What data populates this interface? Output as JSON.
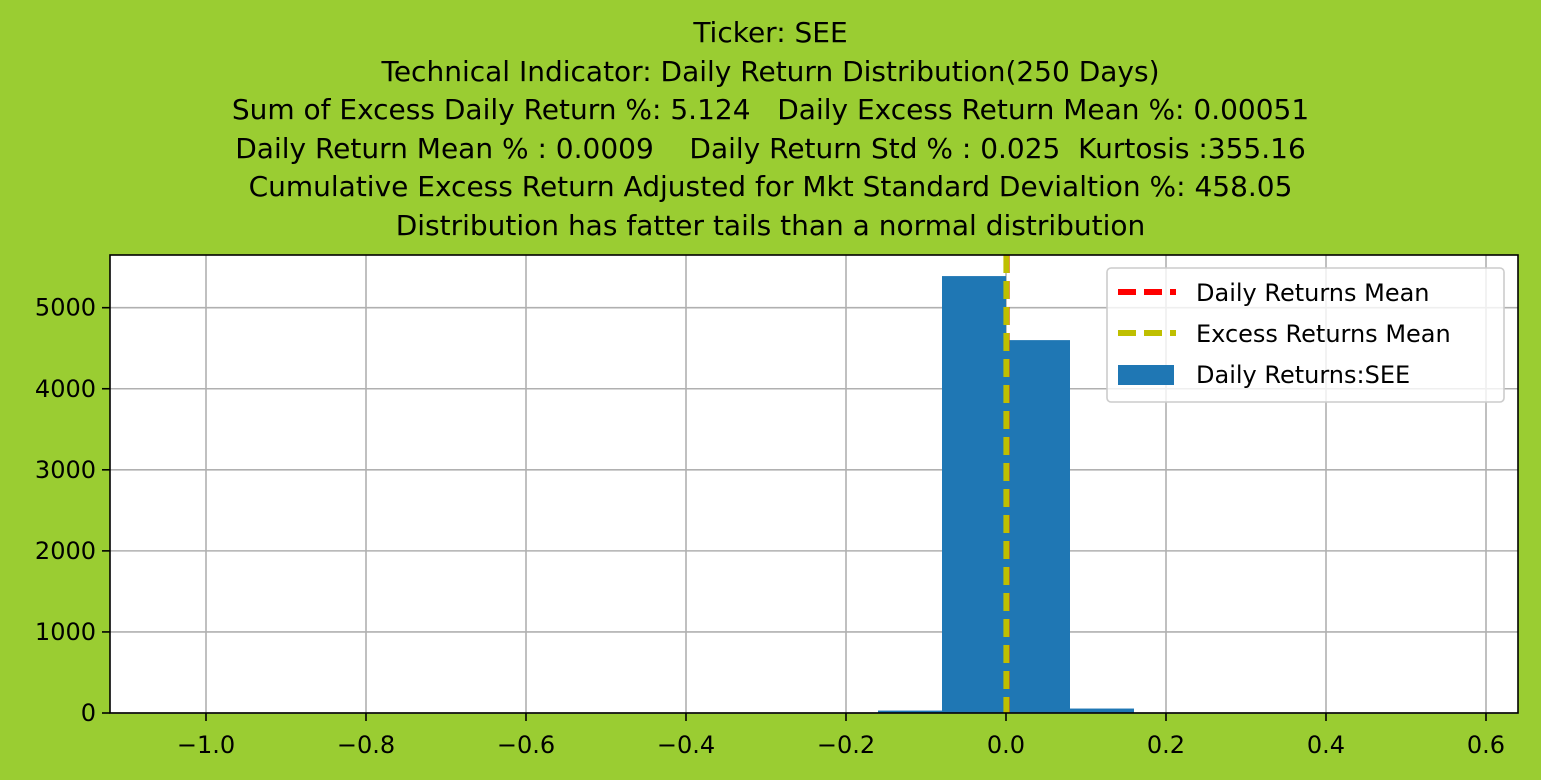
{
  "chart_data": {
    "type": "histogram",
    "title_lines": [
      "Ticker: SEE",
      "Technical Indicator: Daily Return Distribution(250 Days)",
      "Sum of Excess Daily Return %: 5.124   Daily Excess Return Mean %: 0.00051",
      "Daily Return Mean % : 0.0009    Daily Return Std % : 0.025  Kurtosis :355.16",
      "Cumulative Excess Return Adjusted for Mkt Standard Devialtion %: 458.05",
      "Distribution has fatter tails than a normal distribution"
    ],
    "xlabel": "",
    "ylabel": "",
    "xlim": [
      -1.12,
      0.64
    ],
    "ylim": [
      0,
      5650
    ],
    "xticks": [
      -1.0,
      -0.8,
      -0.6,
      -0.4,
      -0.2,
      0.0,
      0.2,
      0.4,
      0.6
    ],
    "xtick_labels": [
      "−1.0",
      "−0.8",
      "−0.6",
      "−0.4",
      "−0.2",
      "0.0",
      "0.2",
      "0.4",
      "0.6"
    ],
    "yticks": [
      0,
      1000,
      2000,
      3000,
      4000,
      5000
    ],
    "ytick_labels": [
      "0",
      "1000",
      "2000",
      "3000",
      "4000",
      "5000"
    ],
    "grid": true,
    "bins": [
      {
        "x0": -1.04,
        "x1": -0.96,
        "count": 1
      },
      {
        "x0": -0.96,
        "x1": -0.88,
        "count": 0
      },
      {
        "x0": -0.88,
        "x1": -0.8,
        "count": 0
      },
      {
        "x0": -0.8,
        "x1": -0.72,
        "count": 0
      },
      {
        "x0": -0.72,
        "x1": -0.64,
        "count": 0
      },
      {
        "x0": -0.64,
        "x1": -0.56,
        "count": 0
      },
      {
        "x0": -0.56,
        "x1": -0.48,
        "count": 0
      },
      {
        "x0": -0.48,
        "x1": -0.4,
        "count": 0
      },
      {
        "x0": -0.4,
        "x1": -0.32,
        "count": 0
      },
      {
        "x0": -0.32,
        "x1": -0.24,
        "count": 0
      },
      {
        "x0": -0.24,
        "x1": -0.16,
        "count": 0
      },
      {
        "x0": -0.16,
        "x1": -0.08,
        "count": 30
      },
      {
        "x0": -0.08,
        "x1": 0.0,
        "count": 5390
      },
      {
        "x0": 0.0,
        "x1": 0.08,
        "count": 4600
      },
      {
        "x0": 0.08,
        "x1": 0.16,
        "count": 55
      },
      {
        "x0": 0.16,
        "x1": 0.24,
        "count": 3
      },
      {
        "x0": 0.24,
        "x1": 0.32,
        "count": 1
      },
      {
        "x0": 0.32,
        "x1": 0.4,
        "count": 0
      },
      {
        "x0": 0.4,
        "x1": 0.48,
        "count": 0
      },
      {
        "x0": 0.48,
        "x1": 0.56,
        "count": 0
      }
    ],
    "vlines": [
      {
        "name": "Daily Returns Mean",
        "x": 0.0009,
        "color": "#ff0000"
      },
      {
        "name": "Excess Returns Mean",
        "x": 0.00051,
        "color": "#bfbf00"
      }
    ],
    "bar_series": {
      "name": "Daily Returns:SEE",
      "color": "#1f77b4"
    },
    "legend_position": "upper right"
  }
}
